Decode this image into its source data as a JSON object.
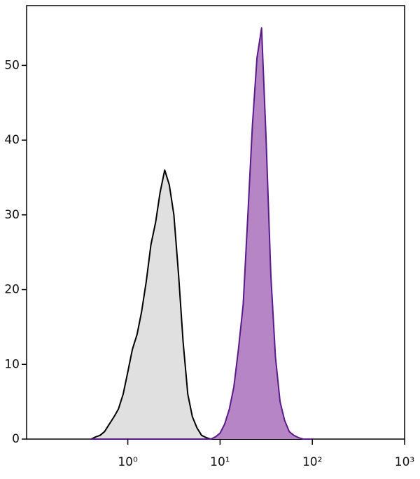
{
  "chart_data": {
    "type": "area",
    "x": [
      0.4,
      0.45,
      0.5,
      0.56,
      0.63,
      0.71,
      0.79,
      0.89,
      1,
      1.12,
      1.26,
      1.41,
      1.58,
      1.78,
      2.0,
      2.24,
      2.51,
      2.82,
      3.16,
      3.55,
      3.98,
      4.47,
      5.01,
      5.62,
      6.31,
      7.08,
      7.94,
      8.91,
      10,
      11.2,
      12.6,
      14.1,
      15.8,
      17.8,
      20,
      22.4,
      25.1,
      28.2,
      31.6,
      35.5,
      39.8,
      44.7,
      50.1,
      56.2,
      63.1,
      70.8,
      79.4,
      89.1,
      100
    ],
    "series": [
      {
        "color": "#000000",
        "fill": "#e0e0e0",
        "values": [
          0,
          0.3,
          0.5,
          1,
          2,
          3,
          4,
          6,
          9,
          12,
          14,
          17,
          21,
          26,
          29,
          33,
          36,
          34,
          30,
          22,
          13,
          6,
          3,
          1.5,
          0.5,
          0.2,
          0,
          0,
          0,
          0,
          0,
          0,
          0,
          0,
          0,
          0,
          0,
          0,
          0,
          0,
          0,
          0,
          0,
          0,
          0,
          0,
          0,
          0,
          0
        ]
      },
      {
        "color": "#5a1a8a",
        "fill": "#b585c6",
        "values": [
          0,
          0,
          0,
          0,
          0,
          0,
          0,
          0,
          0,
          0,
          0,
          0,
          0,
          0,
          0,
          0,
          0,
          0,
          0,
          0,
          0,
          0,
          0,
          0,
          0,
          0,
          0,
          0.3,
          0.8,
          2,
          4,
          7,
          12,
          18,
          30,
          42,
          51,
          55,
          40,
          22,
          11,
          5,
          2.5,
          1,
          0.5,
          0.2,
          0,
          0,
          0
        ]
      }
    ],
    "xscale": "log",
    "xlim": [
      0.08,
      1000
    ],
    "xticks": [
      {
        "value": 1,
        "label": "10⁰"
      },
      {
        "value": 10,
        "label": "10¹"
      },
      {
        "value": 100,
        "label": "10²"
      },
      {
        "value": 1000,
        "label": "10³"
      }
    ],
    "ylim": [
      0,
      58
    ],
    "yticks": [
      0,
      10,
      20,
      30,
      40,
      50
    ]
  }
}
